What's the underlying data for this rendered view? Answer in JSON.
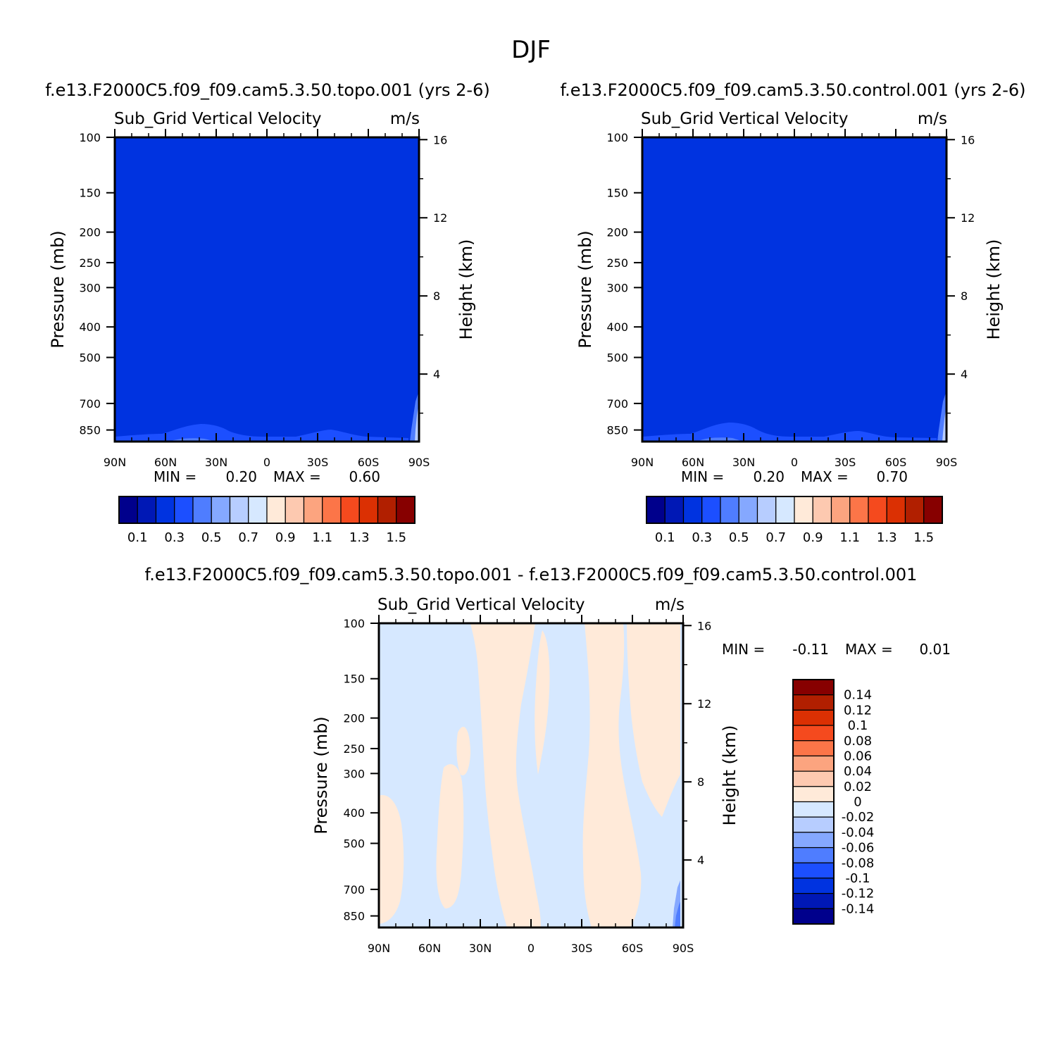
{
  "figure": {
    "title": "DJF"
  },
  "colors": {
    "background": "#ffffff",
    "base_fill_top": "#0033e0",
    "diff_base_fill": "#d6e8ff",
    "diff_positive_fill": "#ffead9"
  },
  "palette": [
    "#00008c",
    "#0018b5",
    "#0033e0",
    "#1c4fff",
    "#4f7dff",
    "#85a8ff",
    "#b7cdff",
    "#d6e8ff",
    "#ffead9",
    "#fdc9b0",
    "#fca47f",
    "#fc7548",
    "#f54a1e",
    "#db3003",
    "#b11f00",
    "#870000"
  ],
  "panels": [
    {
      "id": "topo",
      "title": "f.e13.F2000C5.f09_f09.cam5.3.50.topo.001  (yrs 2-6)",
      "variable": "Sub_Grid Vertical Velocity",
      "units": "m/s",
      "min_label": "MIN =",
      "min_value": "0.20",
      "max_label": "MAX =",
      "max_value": "0.60"
    },
    {
      "id": "control",
      "title": "f.e13.F2000C5.f09_f09.cam5.3.50.control.001  (yrs 2-6)",
      "variable": "Sub_Grid Vertical Velocity",
      "units": "m/s",
      "min_label": "MIN =",
      "min_value": "0.20",
      "max_label": "MAX =",
      "max_value": "0.70"
    },
    {
      "id": "diff",
      "title": "f.e13.F2000C5.f09_f09.cam5.3.50.topo.001 - f.e13.F2000C5.f09_f09.cam5.3.50.control.001",
      "variable": "Sub_Grid Vertical Velocity",
      "units": "m/s",
      "min_label": "MIN =",
      "min_value": "-0.11",
      "max_label": "MAX =",
      "max_value": "0.01"
    }
  ],
  "chart_data": {
    "type": "heatmap",
    "subtype": "latitude-pressure contour",
    "x_axis": {
      "ticks": [
        "90N",
        "60N",
        "30N",
        "0",
        "30S",
        "60S",
        "90S"
      ],
      "range": [
        90,
        -90
      ]
    },
    "y_axis_left": {
      "label": "Pressure (mb)",
      "scale": "log",
      "ticks": [
        100,
        150,
        200,
        250,
        300,
        400,
        500,
        700,
        850
      ],
      "range": [
        925,
        100
      ]
    },
    "y_axis_right": {
      "label": "Height (km)",
      "ticks": [
        4,
        8,
        12,
        16
      ]
    },
    "colorbar_main": {
      "orientation": "horizontal",
      "levels": [
        0.1,
        0.2,
        0.3,
        0.4,
        0.5,
        0.6,
        0.7,
        0.8,
        0.9,
        1.0,
        1.1,
        1.2,
        1.3,
        1.4,
        1.5
      ],
      "labels": [
        "0.1",
        "0.3",
        "0.5",
        "0.7",
        "0.9",
        "1.1",
        "1.3",
        "1.5"
      ]
    },
    "colorbar_diff": {
      "orientation": "vertical",
      "levels": [
        -0.14,
        -0.12,
        -0.1,
        -0.08,
        -0.06,
        -0.04,
        -0.02,
        0,
        0.02,
        0.04,
        0.06,
        0.08,
        0.1,
        0.12,
        0.14
      ],
      "labels": [
        "0.14",
        "0.12",
        "0.1",
        "0.08",
        "0.06",
        "0.04",
        "0.02",
        "0",
        "-0.02",
        "-0.04",
        "-0.06",
        "-0.08",
        "-0.1",
        "-0.12",
        "-0.14"
      ]
    }
  }
}
